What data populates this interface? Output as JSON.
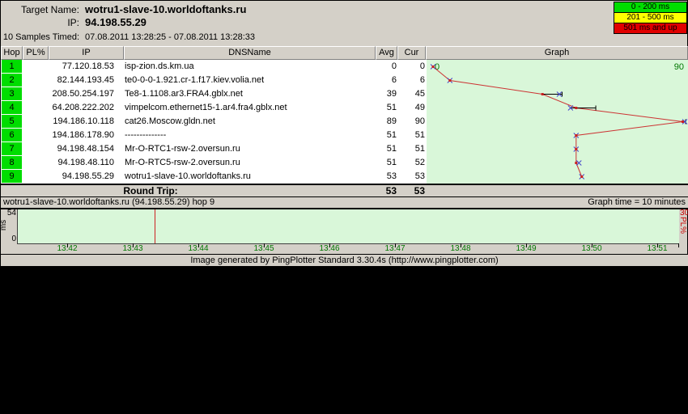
{
  "header": {
    "target_name_label": "Target Name:",
    "target_name": "wotru1-slave-10.worldoftanks.ru",
    "ip_label": "IP:",
    "ip": "94.198.55.29",
    "samples_label": "10 Samples Timed:",
    "samples_value": "07.08.2011 13:28:25 - 07.08.2011 13:28:33"
  },
  "legend": [
    {
      "label": "0 - 200 ms",
      "color": "#00dd00"
    },
    {
      "label": "201 - 500 ms",
      "color": "#ffff00"
    },
    {
      "label": "501 ms and up",
      "color": "#e00000"
    }
  ],
  "table": {
    "columns": [
      "Hop",
      "PL%",
      "IP",
      "DNSName",
      "Avg",
      "Cur",
      "Graph"
    ],
    "rows": [
      {
        "hop": "1",
        "pl": "",
        "ip": "77.120.18.53",
        "dns": "isp-zion.ds.km.ua",
        "avg": "0",
        "cur": "0"
      },
      {
        "hop": "2",
        "pl": "",
        "ip": "82.144.193.45",
        "dns": "te0-0-0-1.921.cr-1.f17.kiev.volia.net",
        "avg": "6",
        "cur": "6"
      },
      {
        "hop": "3",
        "pl": "",
        "ip": "208.50.254.197",
        "dns": "Te8-1.1108.ar3.FRA4.gblx.net",
        "avg": "39",
        "cur": "45"
      },
      {
        "hop": "4",
        "pl": "",
        "ip": "64.208.222.202",
        "dns": "vimpelcom.ethernet15-1.ar4.fra4.gblx.net",
        "avg": "51",
        "cur": "49"
      },
      {
        "hop": "5",
        "pl": "",
        "ip": "194.186.10.118",
        "dns": "cat26.Moscow.gldn.net",
        "avg": "89",
        "cur": "90"
      },
      {
        "hop": "6",
        "pl": "",
        "ip": "194.186.178.90",
        "dns": "--------------",
        "avg": "51",
        "cur": "51"
      },
      {
        "hop": "7",
        "pl": "",
        "ip": "94.198.48.154",
        "dns": "Mr-O-RTC1-rsw-2.oversun.ru",
        "avg": "51",
        "cur": "51"
      },
      {
        "hop": "8",
        "pl": "",
        "ip": "94.198.48.110",
        "dns": "Mr-O-RTC5-rsw-2.oversun.ru",
        "avg": "51",
        "cur": "52"
      },
      {
        "hop": "9",
        "pl": "",
        "ip": "94.198.55.29",
        "dns": "wotru1-slave-10.worldoftanks.ru",
        "avg": "53",
        "cur": "53"
      }
    ],
    "round_trip_label": "Round Trip:",
    "round_trip_avg": "53",
    "round_trip_cur": "53"
  },
  "trace_graph": {
    "scale_min_label": "0",
    "scale_max_label": "90",
    "scale_max": 90,
    "line_color": "#cc3333",
    "marker_color": "#4444cc",
    "points": [
      {
        "avg": 0,
        "cur": 0
      },
      {
        "avg": 6,
        "cur": 6
      },
      {
        "avg": 39,
        "cur": 45,
        "range": [
          39,
          46
        ]
      },
      {
        "avg": 51,
        "cur": 49,
        "range": [
          49,
          58
        ]
      },
      {
        "avg": 89,
        "cur": 90,
        "range": [
          89,
          90
        ]
      },
      {
        "avg": 51,
        "cur": 51
      },
      {
        "avg": 51,
        "cur": 51
      },
      {
        "avg": 51,
        "cur": 52
      },
      {
        "avg": 53,
        "cur": 53
      }
    ]
  },
  "timeline": {
    "title": "wotru1-slave-10.worldoftanks.ru (94.198.55.29) hop 9",
    "graph_time_label": "Graph time = 10 minutes",
    "y_max_label": "54",
    "y_min_label": "0",
    "y_axis_label": "ms",
    "pl_max_label": "30",
    "pl_axis_label": "PL%",
    "ticks": [
      "13:42",
      "13:43",
      "13:44",
      "13:45",
      "13:46",
      "13:47",
      "13:48",
      "13:49",
      "13:50",
      "13:51"
    ],
    "current_time_fraction": 0.207
  },
  "footer": "Image generated by PingPlotter Standard 3.30.4s (http://www.pingplotter.com)"
}
